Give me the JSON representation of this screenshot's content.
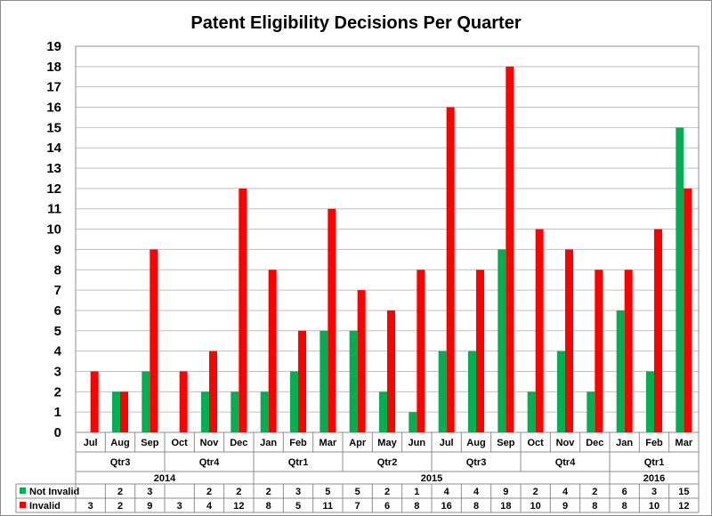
{
  "chart_data": {
    "type": "bar",
    "title": "Patent Eligibility Decisions Per Quarter",
    "ylim": [
      0,
      19
    ],
    "y_ticks": [
      0,
      1,
      2,
      3,
      4,
      5,
      6,
      7,
      8,
      9,
      10,
      11,
      12,
      13,
      14,
      15,
      16,
      17,
      18,
      19
    ],
    "grid": "horizontal",
    "categories": [
      "Jul",
      "Aug",
      "Sep",
      "Oct",
      "Nov",
      "Dec",
      "Jan",
      "Feb",
      "Mar",
      "Apr",
      "May",
      "Jun",
      "Jul",
      "Aug",
      "Sep",
      "Oct",
      "Nov",
      "Dec",
      "Jan",
      "Feb",
      "Mar"
    ],
    "quarters": [
      {
        "label": "Qtr3",
        "span": 3
      },
      {
        "label": "Qtr4",
        "span": 3
      },
      {
        "label": "Qtr1",
        "span": 3
      },
      {
        "label": "Qtr2",
        "span": 3
      },
      {
        "label": "Qtr3",
        "span": 3
      },
      {
        "label": "Qtr4",
        "span": 3
      },
      {
        "label": "Qtr1",
        "span": 3
      }
    ],
    "years": [
      {
        "label": "2014",
        "span": 6
      },
      {
        "label": "2015",
        "span": 12
      },
      {
        "label": "2016",
        "span": 3
      }
    ],
    "series": [
      {
        "name": "Not Invalid",
        "color": "#00b050",
        "values": [
          null,
          2,
          3,
          null,
          2,
          2,
          2,
          3,
          5,
          5,
          2,
          1,
          4,
          4,
          9,
          2,
          4,
          2,
          6,
          3,
          15
        ]
      },
      {
        "name": "Invalid",
        "color": "#ff0000",
        "values": [
          3,
          2,
          9,
          3,
          4,
          12,
          8,
          5,
          11,
          7,
          6,
          8,
          16,
          8,
          18,
          10,
          9,
          8,
          8,
          10,
          12
        ]
      }
    ]
  }
}
